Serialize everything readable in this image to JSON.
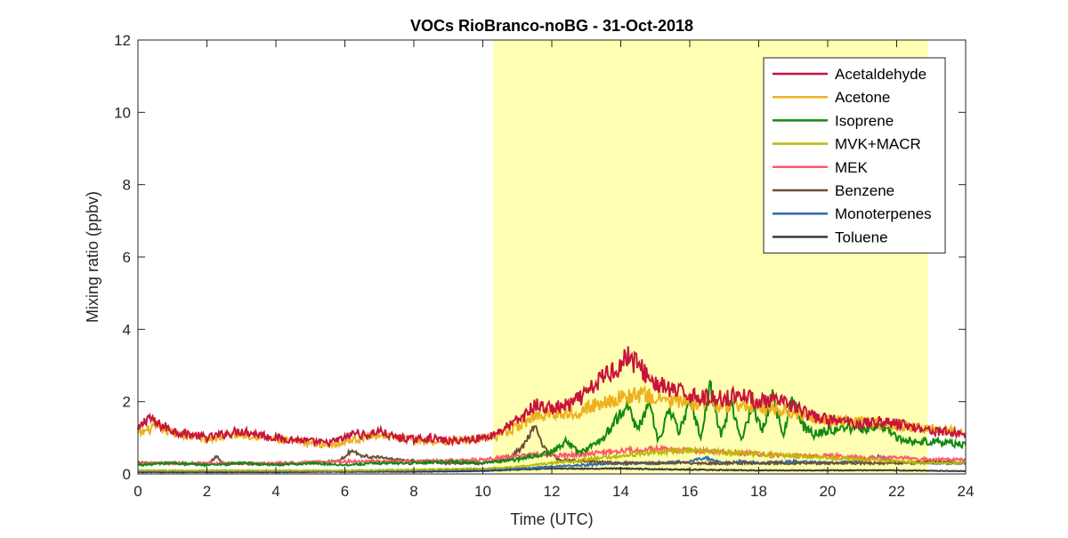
{
  "chart_data": {
    "type": "line",
    "title": "VOCs RioBranco-noBG - 31-Oct-2018",
    "xlabel": "Time (UTC)",
    "ylabel": "Mixing ratio (ppbv)",
    "xlim": [
      0,
      24
    ],
    "ylim": [
      0,
      12
    ],
    "xticks": [
      0,
      2,
      4,
      6,
      8,
      10,
      12,
      14,
      16,
      18,
      20,
      22,
      24
    ],
    "yticks": [
      0,
      2,
      4,
      6,
      8,
      10,
      12
    ],
    "grid": false,
    "legend_position": "top-right",
    "daytime_shading": {
      "x_start": 10.3,
      "x_end": 22.9,
      "color": "#ffffb3"
    },
    "series": [
      {
        "name": "Acetaldehyde",
        "color": "#c8143c",
        "x": [
          0,
          0.3,
          0.5,
          0.8,
          1,
          1.5,
          2,
          2.5,
          3,
          3.5,
          4,
          4.5,
          5,
          5.5,
          6,
          6.3,
          6.6,
          7,
          7.3,
          7.6,
          8,
          8.5,
          9,
          9.5,
          10,
          10.3,
          10.8,
          11.2,
          11.5,
          12,
          12.5,
          13,
          13.3,
          13.6,
          14,
          14.2,
          14.5,
          14.8,
          15,
          15.5,
          16,
          16.5,
          17,
          17.5,
          18,
          18.5,
          19,
          19.5,
          20,
          20.5,
          21,
          21.5,
          22,
          22.5,
          23,
          23.5,
          24
        ],
        "y": [
          1.2,
          1.6,
          1.4,
          1.3,
          1.2,
          1.1,
          1.0,
          1.1,
          1.2,
          1.1,
          1.0,
          0.95,
          0.9,
          0.85,
          1.0,
          1.15,
          1.05,
          1.2,
          1.05,
          1.0,
          0.95,
          1.0,
          0.9,
          0.95,
          1.0,
          1.1,
          1.35,
          1.6,
          1.9,
          1.8,
          1.9,
          2.2,
          2.5,
          2.8,
          3.0,
          3.3,
          3.0,
          2.7,
          2.5,
          2.3,
          2.2,
          2.1,
          2.1,
          2.2,
          2.0,
          2.0,
          1.9,
          1.6,
          1.5,
          1.45,
          1.4,
          1.45,
          1.4,
          1.3,
          1.2,
          1.15,
          1.1
        ]
      },
      {
        "name": "Acetone",
        "color": "#edb120",
        "x": [
          0,
          0.5,
          1,
          1.5,
          2,
          2.5,
          3,
          3.5,
          4,
          4.5,
          5,
          5.5,
          6,
          6.5,
          7,
          7.5,
          8,
          8.5,
          9,
          9.5,
          10,
          10.5,
          11,
          11.5,
          12,
          12.5,
          13,
          13.5,
          14,
          14.5,
          15,
          15.5,
          16,
          16.5,
          17,
          17.5,
          18,
          18.5,
          19,
          19.5,
          20,
          20.5,
          21,
          21.5,
          22,
          22.5,
          23,
          23.5,
          24
        ],
        "y": [
          1.1,
          1.3,
          1.15,
          1.05,
          0.95,
          1.05,
          1.1,
          1.05,
          0.95,
          0.9,
          0.85,
          0.8,
          0.9,
          1.0,
          1.1,
          1.0,
          0.95,
          0.9,
          0.9,
          0.95,
          1.0,
          1.05,
          1.3,
          1.6,
          1.7,
          1.7,
          1.8,
          2.0,
          2.1,
          2.2,
          2.1,
          2.0,
          2.0,
          1.95,
          1.9,
          1.9,
          1.85,
          1.8,
          1.7,
          1.6,
          1.5,
          1.45,
          1.45,
          1.4,
          1.35,
          1.3,
          1.25,
          1.2,
          1.15
        ]
      },
      {
        "name": "Isoprene",
        "color": "#118a11",
        "x": [
          0,
          1,
          2,
          3,
          4,
          5,
          6,
          7,
          8,
          9,
          10,
          10.5,
          11,
          11.5,
          12,
          12.4,
          12.8,
          13.2,
          13.5,
          13.8,
          14.2,
          14.5,
          14.8,
          15.1,
          15.4,
          15.7,
          16,
          16.3,
          16.6,
          16.9,
          17.2,
          17.5,
          17.8,
          18.1,
          18.4,
          18.7,
          19,
          19.3,
          19.6,
          20,
          20.5,
          21,
          21.5,
          22,
          22.5,
          23,
          23.5,
          24
        ],
        "y": [
          0.25,
          0.3,
          0.25,
          0.3,
          0.25,
          0.3,
          0.25,
          0.3,
          0.3,
          0.35,
          0.3,
          0.35,
          0.4,
          0.5,
          0.6,
          0.9,
          0.6,
          0.8,
          1.0,
          1.4,
          1.9,
          1.2,
          2.0,
          0.9,
          1.8,
          1.1,
          2.1,
          1.0,
          2.4,
          1.1,
          2.0,
          0.9,
          1.9,
          1.2,
          2.2,
          1.1,
          2.1,
          1.3,
          1.1,
          1.2,
          1.3,
          1.2,
          1.4,
          1.0,
          0.9,
          0.9,
          0.85,
          0.8
        ]
      },
      {
        "name": "MVK+MACR",
        "color": "#bdb90a",
        "x": [
          0,
          2,
          4,
          6,
          8,
          10,
          11,
          12,
          13,
          14,
          15,
          16,
          17,
          18,
          19,
          20,
          21,
          22,
          23,
          24
        ],
        "y": [
          0.1,
          0.1,
          0.1,
          0.1,
          0.12,
          0.15,
          0.2,
          0.3,
          0.4,
          0.5,
          0.6,
          0.65,
          0.6,
          0.55,
          0.5,
          0.45,
          0.4,
          0.35,
          0.3,
          0.3
        ]
      },
      {
        "name": "MEK",
        "color": "#ff5a6e",
        "x": [
          0,
          2,
          4,
          6,
          8,
          10,
          11,
          11.5,
          12,
          13,
          14,
          15,
          16,
          17,
          18,
          19,
          20,
          21,
          22,
          23,
          24
        ],
        "y": [
          0.3,
          0.3,
          0.3,
          0.35,
          0.35,
          0.4,
          0.5,
          0.55,
          0.5,
          0.55,
          0.65,
          0.7,
          0.65,
          0.6,
          0.55,
          0.5,
          0.5,
          0.45,
          0.45,
          0.4,
          0.4
        ]
      },
      {
        "name": "Benzene",
        "color": "#6e5036",
        "x": [
          0,
          1,
          2,
          2.3,
          2.5,
          3,
          4,
          5,
          5.8,
          6.2,
          6.5,
          7,
          8,
          9,
          10,
          10.8,
          11.2,
          11.5,
          11.8,
          12.2,
          13,
          14,
          15,
          16,
          17,
          18,
          19,
          20,
          21,
          22,
          23,
          24
        ],
        "y": [
          0.3,
          0.3,
          0.25,
          0.5,
          0.25,
          0.3,
          0.25,
          0.3,
          0.35,
          0.65,
          0.5,
          0.45,
          0.35,
          0.3,
          0.3,
          0.45,
          0.8,
          1.3,
          0.7,
          0.4,
          0.35,
          0.3,
          0.3,
          0.3,
          0.3,
          0.3,
          0.3,
          0.3,
          0.3,
          0.3,
          0.35,
          0.3
        ]
      },
      {
        "name": "Monoterpenes",
        "color": "#2d6cb0",
        "x": [
          0,
          2,
          4,
          6,
          8,
          10,
          11,
          12,
          13,
          14,
          15,
          16,
          16.5,
          17,
          17.5,
          18,
          19,
          20,
          21,
          21.5,
          22,
          23,
          24
        ],
        "y": [
          0.08,
          0.08,
          0.08,
          0.08,
          0.1,
          0.12,
          0.15,
          0.2,
          0.25,
          0.3,
          0.3,
          0.35,
          0.45,
          0.3,
          0.35,
          0.3,
          0.35,
          0.3,
          0.35,
          0.5,
          0.3,
          0.3,
          0.3
        ]
      },
      {
        "name": "Toluene",
        "color": "#3a3a3a",
        "x": [
          0,
          2,
          4,
          6,
          8,
          10,
          11,
          12,
          14,
          16,
          18,
          20,
          22,
          24
        ],
        "y": [
          0.05,
          0.05,
          0.05,
          0.06,
          0.06,
          0.08,
          0.12,
          0.15,
          0.15,
          0.12,
          0.1,
          0.1,
          0.1,
          0.08
        ]
      }
    ]
  }
}
